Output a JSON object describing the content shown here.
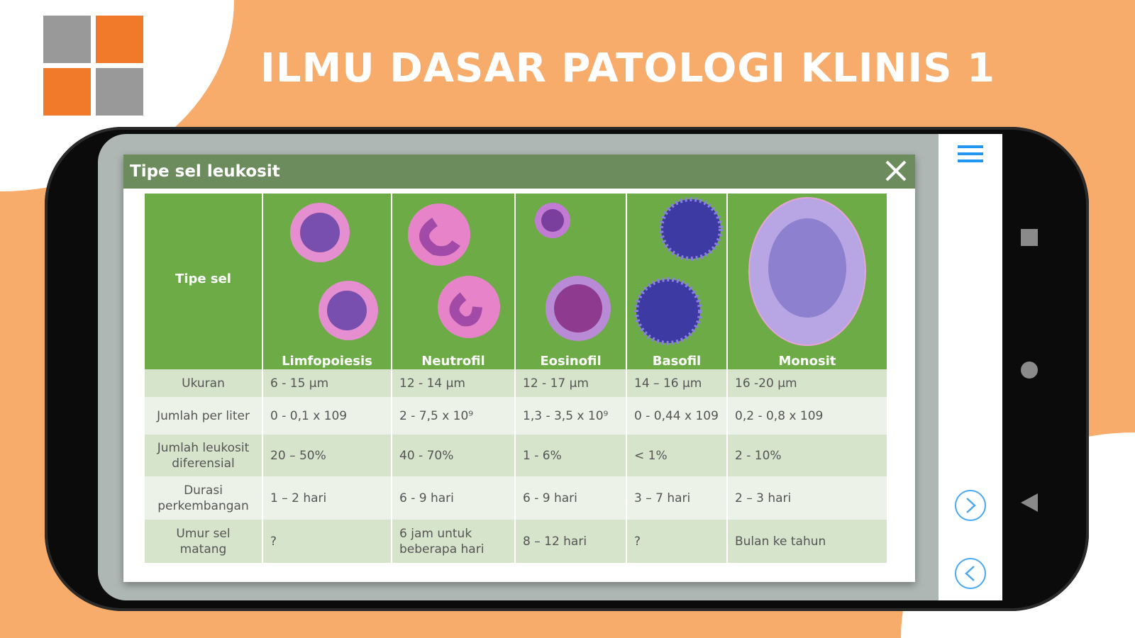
{
  "banner": {
    "title": "ILMU DASAR PATOLOGI KLINIS 1"
  },
  "colors": {
    "background": "#f8ac6c",
    "logo_orange": "#f07a2a",
    "logo_gray": "#999999",
    "dialog_header": "#6c8c5e",
    "table_header": "#6dab47",
    "accent_blue": "#2196f3"
  },
  "dialog": {
    "title": "Tipe sel leukosit",
    "close_icon": "close-icon",
    "table": {
      "header_label": "Tipe sel",
      "columns": [
        "Limfopoiesis",
        "Neutrofil",
        "Eosinofil",
        "Basofil",
        "Monosit"
      ],
      "rows": [
        {
          "label": "Ukuran",
          "values": [
            "6 - 15 µm",
            "12 - 14 µm",
            "12 - 17 µm",
            "14 – 16 µm",
            "16 -20 µm"
          ]
        },
        {
          "label": "Jumlah per liter",
          "values": [
            "0 - 0,1 x 109",
            "2 - 7,5 x 10⁹",
            "1,3 - 3,5 x 10⁹",
            "0 - 0,44 x 109",
            "0,2 - 0,8 x 109"
          ]
        },
        {
          "label": "Jumlah leukosit diferensial",
          "values": [
            "20 – 50%",
            "40 - 70%",
            "1 - 6%",
            "< 1%",
            "2 - 10%"
          ]
        },
        {
          "label": "Durasi perkembangan",
          "values": [
            "1 – 2 hari",
            "6 - 9 hari",
            "6 - 9 hari",
            "3 – 7 hari",
            "2 – 3 hari"
          ]
        },
        {
          "label": "Umur sel matang",
          "values": [
            "?",
            "6 jam untuk beberapa hari",
            "8 – 12 hari",
            "?",
            "Bulan ke tahun"
          ]
        }
      ]
    }
  },
  "sidebar": {
    "menu_icon": "hamburger-icon",
    "next_icon": "chevron-right-circle-icon",
    "prev_icon": "chevron-left-circle-icon"
  },
  "android_nav": {
    "recents": "square-icon",
    "home": "circle-icon",
    "back": "triangle-back-icon"
  }
}
